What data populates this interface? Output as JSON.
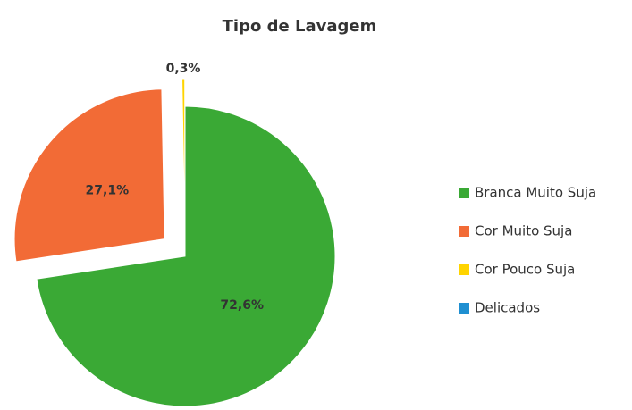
{
  "chart_data": {
    "type": "pie",
    "title": "Tipo de Lavagem",
    "categories": [
      "Branca Muito Suja",
      "Cor Muito Suja",
      "Cor Pouco Suja",
      "Delicados"
    ],
    "values": [
      72.6,
      27.1,
      0.3,
      0
    ],
    "value_labels": [
      "72,6%",
      "27,1%",
      "0,3%",
      null
    ],
    "colors": [
      "#3aa935",
      "#f26b36",
      "#ffd400",
      "#1f8fd1"
    ],
    "exploded": [
      false,
      true,
      true,
      false
    ],
    "legend": "right"
  }
}
